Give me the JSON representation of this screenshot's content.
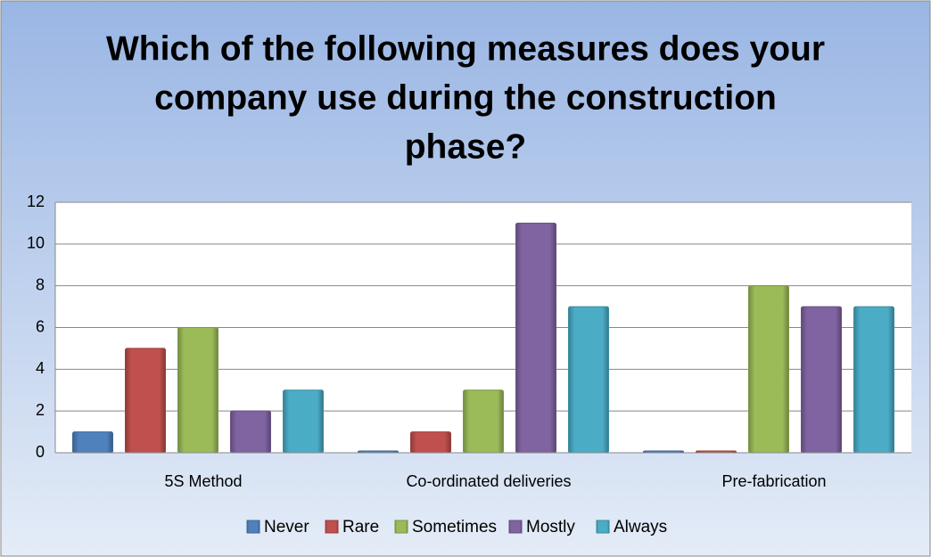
{
  "chart_data": {
    "type": "bar",
    "title_lines": [
      "Which of the following measures does your",
      "company use during the construction",
      "phase?"
    ],
    "categories": [
      "5S Method",
      "Co-ordinated deliveries",
      "Pre-fabrication"
    ],
    "series": [
      {
        "name": "Never",
        "color": "#4f81bd",
        "values": [
          1,
          0,
          0
        ]
      },
      {
        "name": "Rare",
        "color": "#c0504d",
        "values": [
          5,
          1,
          0
        ]
      },
      {
        "name": "Sometimes",
        "color": "#9bbb59",
        "values": [
          6,
          3,
          8
        ]
      },
      {
        "name": "Mostly",
        "color": "#8064a2",
        "values": [
          2,
          11,
          7
        ]
      },
      {
        "name": "Always",
        "color": "#4bacc6",
        "values": [
          3,
          7,
          7
        ]
      }
    ],
    "ylim": [
      0,
      12
    ],
    "yticks": [
      0,
      2,
      4,
      6,
      8,
      10,
      12
    ],
    "grid": true,
    "legend": "bottom"
  }
}
